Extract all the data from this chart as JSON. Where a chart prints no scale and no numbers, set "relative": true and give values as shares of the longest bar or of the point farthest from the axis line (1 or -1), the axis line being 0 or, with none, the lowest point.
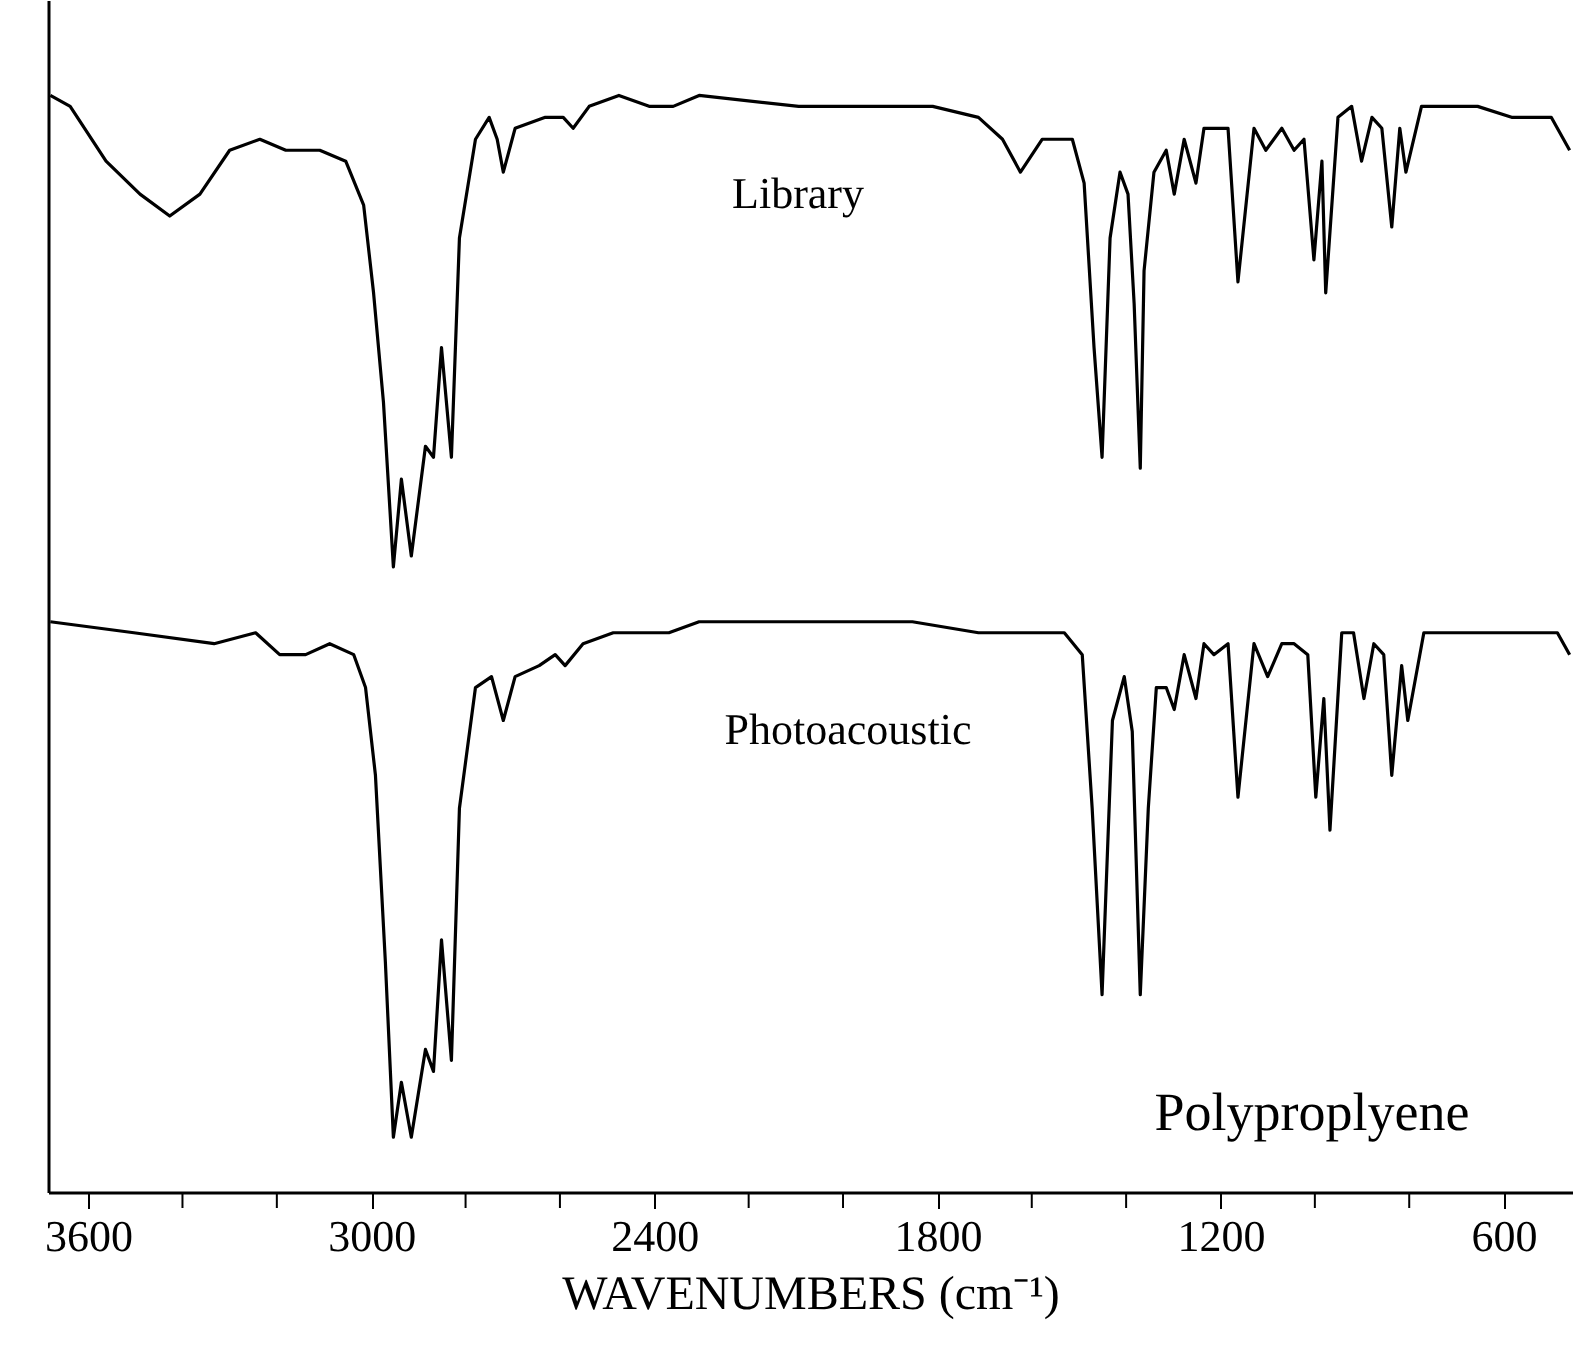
{
  "chart_data": {
    "type": "line",
    "relative": true,
    "xlabel": "WAVENUMBERS (cm⁻¹)",
    "annotations": [
      "Polyproplyene"
    ],
    "xlim": [
      3685,
      455
    ],
    "xticks": [
      3600,
      {
        "value": 3400,
        "label": null
      },
      {
        "value": 3200,
        "label": null
      },
      3000,
      {
        "value": 2800,
        "label": null
      },
      {
        "value": 2600,
        "label": null
      },
      2400,
      {
        "value": 2200,
        "label": null
      },
      {
        "value": 2000,
        "label": null
      },
      1800,
      {
        "value": 1600,
        "label": null
      },
      {
        "value": 1400,
        "label": null
      },
      1200,
      {
        "value": 1000,
        "label": null
      },
      {
        "value": 800,
        "label": null
      },
      600
    ],
    "line_style": "solid",
    "series": [
      {
        "name": "Library",
        "color": "#000000",
        "x": [
          3680,
          3638,
          3562,
          3490,
          3427,
          3363,
          3300,
          3236,
          3181,
          3109,
          3054,
          3016,
          2995,
          2974,
          2953,
          2936,
          2915,
          2885,
          2868,
          2851,
          2830,
          2813,
          2779,
          2750,
          2733,
          2720,
          2695,
          2631,
          2593,
          2572,
          2538,
          2475,
          2411,
          2360,
          2305,
          2094,
          1925,
          1810,
          1713,
          1662,
          1624,
          1578,
          1514,
          1489,
          1468,
          1451,
          1434,
          1413,
          1396,
          1383,
          1370,
          1362,
          1341,
          1315,
          1298,
          1277,
          1252,
          1235,
          1184,
          1163,
          1129,
          1104,
          1070,
          1044,
          1023,
          1002,
          985,
          977,
          951,
          922,
          901,
          879,
          858,
          837,
          820,
          807,
          774,
          727,
          655,
          583,
          499,
          460
        ],
        "values": [
          1.0,
          0.99,
          0.94,
          0.91,
          0.89,
          0.91,
          0.95,
          0.96,
          0.95,
          0.95,
          0.94,
          0.9,
          0.82,
          0.72,
          0.57,
          0.65,
          0.58,
          0.68,
          0.67,
          0.77,
          0.67,
          0.87,
          0.96,
          0.98,
          0.96,
          0.93,
          0.97,
          0.98,
          0.98,
          0.97,
          0.99,
          1.0,
          0.99,
          0.99,
          1.0,
          0.99,
          0.99,
          0.99,
          0.98,
          0.96,
          0.93,
          0.96,
          0.96,
          0.92,
          0.77,
          0.67,
          0.87,
          0.93,
          0.91,
          0.81,
          0.66,
          0.84,
          0.93,
          0.95,
          0.91,
          0.96,
          0.92,
          0.97,
          0.97,
          0.83,
          0.97,
          0.95,
          0.97,
          0.95,
          0.96,
          0.85,
          0.94,
          0.82,
          0.98,
          0.99,
          0.94,
          0.98,
          0.97,
          0.88,
          0.97,
          0.93,
          0.99,
          0.99,
          0.99,
          0.98,
          0.98,
          0.95
        ]
      },
      {
        "name": "Photoacoustic",
        "color": "#000000",
        "x": [
          3680,
          3503,
          3333,
          3245,
          3194,
          3139,
          3088,
          3037,
          3012,
          2991,
          2970,
          2953,
          2936,
          2915,
          2885,
          2868,
          2851,
          2830,
          2813,
          2779,
          2745,
          2720,
          2695,
          2644,
          2610,
          2589,
          2551,
          2487,
          2369,
          2305,
          2094,
          1853,
          1713,
          1671,
          1531,
          1493,
          1472,
          1451,
          1429,
          1404,
          1387,
          1370,
          1353,
          1336,
          1315,
          1298,
          1277,
          1252,
          1235,
          1214,
          1184,
          1163,
          1129,
          1100,
          1070,
          1044,
          1015,
          998,
          981,
          968,
          943,
          918,
          896,
          875,
          854,
          837,
          816,
          803,
          769,
          698,
          583,
          486,
          460
        ],
        "values": [
          0.52,
          0.51,
          0.5,
          0.51,
          0.49,
          0.49,
          0.5,
          0.49,
          0.46,
          0.38,
          0.21,
          0.05,
          0.1,
          0.05,
          0.13,
          0.11,
          0.23,
          0.12,
          0.35,
          0.46,
          0.47,
          0.43,
          0.47,
          0.48,
          0.49,
          0.48,
          0.5,
          0.51,
          0.51,
          0.52,
          0.52,
          0.52,
          0.51,
          0.51,
          0.51,
          0.49,
          0.35,
          0.18,
          0.43,
          0.47,
          0.42,
          0.18,
          0.35,
          0.46,
          0.46,
          0.44,
          0.49,
          0.45,
          0.5,
          0.49,
          0.5,
          0.36,
          0.5,
          0.47,
          0.5,
          0.5,
          0.49,
          0.36,
          0.45,
          0.33,
          0.51,
          0.51,
          0.45,
          0.5,
          0.49,
          0.38,
          0.48,
          0.43,
          0.51,
          0.51,
          0.51,
          0.51,
          0.49
        ]
      }
    ]
  }
}
